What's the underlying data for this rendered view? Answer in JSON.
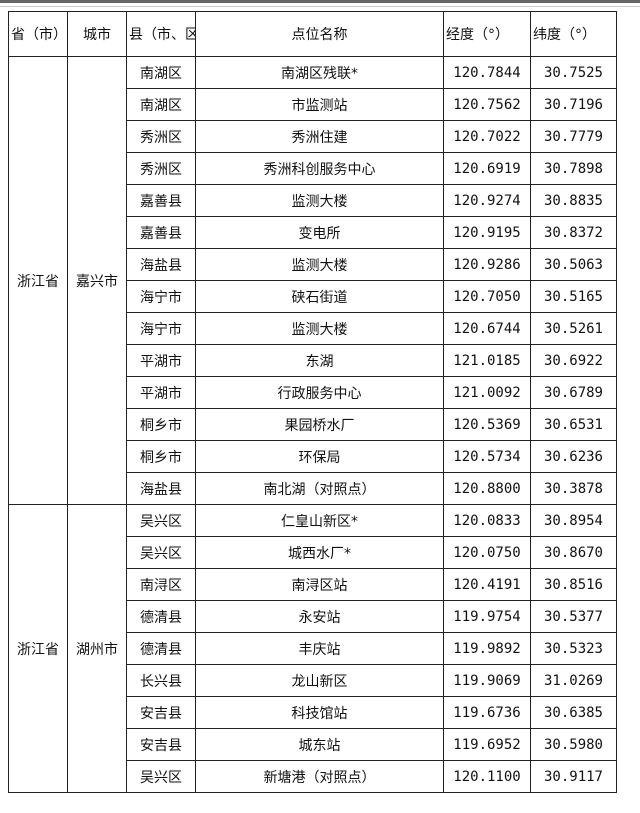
{
  "header": [
    "省（市）",
    "城市",
    "县（市、区）",
    "点位名称",
    "经度（°）",
    "纬度（°）"
  ],
  "groups": [
    {
      "province": "浙江省",
      "city": "嘉兴市",
      "rows": [
        [
          "南湖区",
          "南湖区残联*",
          "120.7844",
          "30.7525"
        ],
        [
          "南湖区",
          "市监测站",
          "120.7562",
          "30.7196"
        ],
        [
          "秀洲区",
          "秀洲住建",
          "120.7022",
          "30.7779"
        ],
        [
          "秀洲区",
          "秀洲科创服务中心",
          "120.6919",
          "30.7898"
        ],
        [
          "嘉善县",
          "监测大楼",
          "120.9274",
          "30.8835"
        ],
        [
          "嘉善县",
          "变电所",
          "120.9195",
          "30.8372"
        ],
        [
          "海盐县",
          "监测大楼",
          "120.9286",
          "30.5063"
        ],
        [
          "海宁市",
          "硖石街道",
          "120.7050",
          "30.5165"
        ],
        [
          "海宁市",
          "监测大楼",
          "120.6744",
          "30.5261"
        ],
        [
          "平湖市",
          "东湖",
          "121.0185",
          "30.6922"
        ],
        [
          "平湖市",
          "行政服务中心",
          "121.0092",
          "30.6789"
        ],
        [
          "桐乡市",
          "果园桥水厂",
          "120.5369",
          "30.6531"
        ],
        [
          "桐乡市",
          "环保局",
          "120.5734",
          "30.6236"
        ],
        [
          "海盐县",
          "南北湖（对照点）",
          "120.8800",
          "30.3878"
        ]
      ]
    },
    {
      "province": "浙江省",
      "city": "湖州市",
      "rows": [
        [
          "吴兴区",
          "仁皇山新区*",
          "120.0833",
          "30.8954"
        ],
        [
          "吴兴区",
          "城西水厂*",
          "120.0750",
          "30.8670"
        ],
        [
          "南浔区",
          "南浔区站",
          "120.4191",
          "30.8516"
        ],
        [
          "德清县",
          "永安站",
          "119.9754",
          "30.5377"
        ],
        [
          "德清县",
          "丰庆站",
          "119.9892",
          "30.5323"
        ],
        [
          "长兴县",
          "龙山新区",
          "119.9069",
          "31.0269"
        ],
        [
          "安吉县",
          "科技馆站",
          "119.6736",
          "30.6385"
        ],
        [
          "安吉县",
          "城东站",
          "119.6952",
          "30.5980"
        ],
        [
          "吴兴区",
          "新塘港（对照点）",
          "120.1100",
          "30.9117"
        ]
      ]
    }
  ]
}
